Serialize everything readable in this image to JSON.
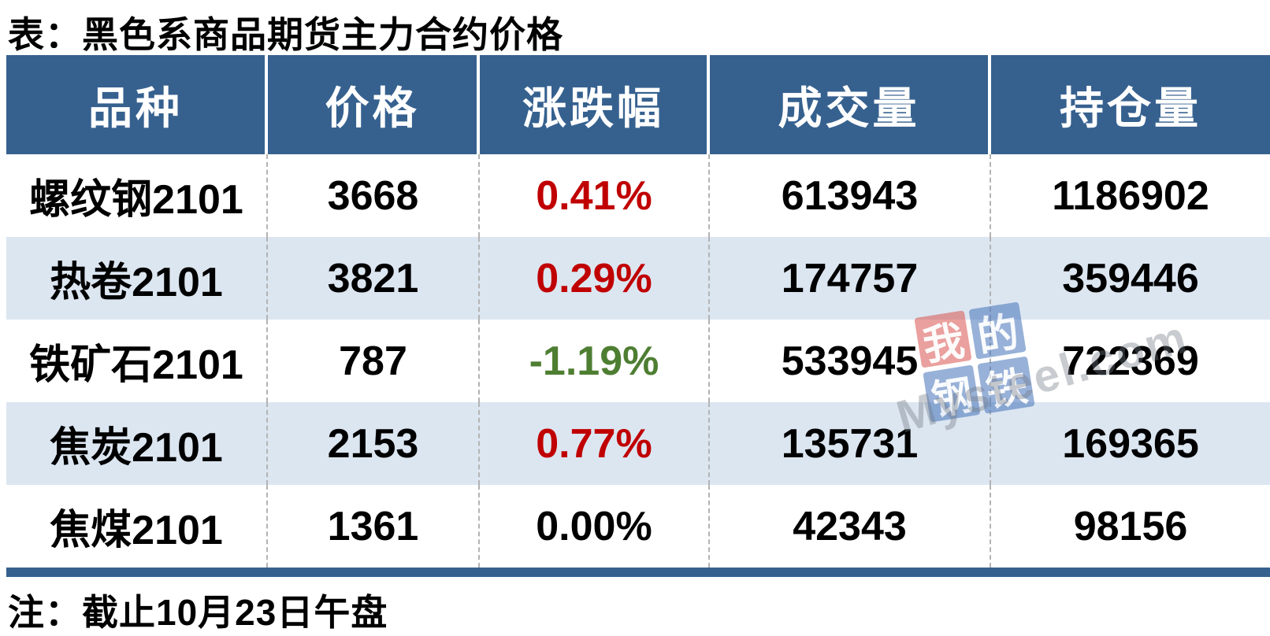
{
  "title": "表：黑色系商品期货主力合约价格",
  "note": "注：截止10月23日午盘",
  "table": {
    "columns": [
      "品种",
      "价格",
      "涨跌幅",
      "成交量",
      "持仓量"
    ],
    "rows": [
      {
        "variety": "螺纹钢2101",
        "price": "3668",
        "change": "0.41%",
        "direction": "up",
        "volume": "613943",
        "open_interest": "1186902"
      },
      {
        "variety": "热卷2101",
        "price": "3821",
        "change": "0.29%",
        "direction": "up",
        "volume": "174757",
        "open_interest": "359446"
      },
      {
        "variety": "铁矿石2101",
        "price": "787",
        "change": "-1.19%",
        "direction": "down",
        "volume": "533945",
        "open_interest": "722369"
      },
      {
        "variety": "焦炭2101",
        "price": "2153",
        "change": "0.77%",
        "direction": "up",
        "volume": "135731",
        "open_interest": "169365"
      },
      {
        "variety": "焦煤2101",
        "price": "1361",
        "change": "0.00%",
        "direction": "flat",
        "volume": "42343",
        "open_interest": "98156"
      }
    ]
  },
  "colors": {
    "header_bg": "#36618f",
    "row_alt_bg": "#dce6f1",
    "up_red": "#c00000",
    "down_green": "#4e7e32",
    "flat_black": "#000000"
  },
  "watermark": {
    "tiles": [
      "我",
      "的",
      "钢",
      "铁"
    ],
    "red_tile_index": 0,
    "text": "Mysteel.com"
  },
  "chart_data": {
    "type": "table",
    "title": "表：黑色系商品期货主力合约价格",
    "note": "注：截止10月23日午盘",
    "columns": [
      "品种",
      "价格",
      "涨跌幅",
      "成交量",
      "持仓量"
    ],
    "rows": [
      [
        "螺纹钢2101",
        3668,
        "0.41%",
        613943,
        1186902
      ],
      [
        "热卷2101",
        3821,
        "0.29%",
        174757,
        359446
      ],
      [
        "铁矿石2101",
        787,
        "-1.19%",
        533945,
        722369
      ],
      [
        "焦炭2101",
        2153,
        "0.77%",
        135731,
        169365
      ],
      [
        "焦煤2101",
        1361,
        "0.00%",
        42343,
        98156
      ]
    ]
  }
}
